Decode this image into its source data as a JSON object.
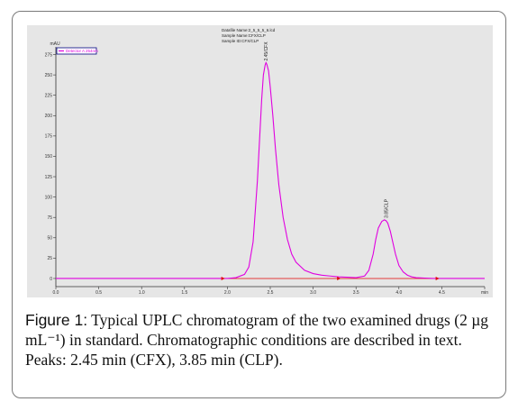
{
  "header": {
    "lines": [
      "Datafile Name:2_5_5_5_6.lcd",
      "Sample Name:CFX/CLP",
      "Sample ID:CFX/CLP"
    ]
  },
  "legend": {
    "label": "Detector A 254nm"
  },
  "colors": {
    "trace": "#e000e0",
    "baseline": "#e00000",
    "marker": "#e00000",
    "background": "#e6e6e6",
    "axis": "#333333"
  },
  "chart_data": {
    "type": "line",
    "title": "",
    "xlabel": "min",
    "ylabel": "mAU",
    "xlim": [
      0.0,
      5.0
    ],
    "ylim": [
      -10,
      280
    ],
    "x_ticks": [
      "0.0",
      "0.5",
      "1.0",
      "1.5",
      "2.0",
      "2.5",
      "3.0",
      "3.5",
      "4.0",
      "4.5",
      "min"
    ],
    "y_ticks": [
      "0",
      "25",
      "50",
      "75",
      "100",
      "125",
      "150",
      "175",
      "200",
      "225",
      "250",
      "275"
    ],
    "grid": false,
    "series": [
      {
        "name": "",
        "x": [
          1.95,
          2.0,
          2.1,
          2.2,
          2.25,
          2.3,
          2.35,
          2.38,
          2.4,
          2.42,
          2.44,
          2.45,
          2.46,
          2.48,
          2.5,
          2.53,
          2.56,
          2.6,
          2.65,
          2.7,
          2.75,
          2.8,
          2.9,
          3.0,
          3.1,
          3.2,
          3.3,
          3.4,
          3.5,
          3.6,
          3.65,
          3.7,
          3.73,
          3.76,
          3.8,
          3.83,
          3.85,
          3.87,
          3.9,
          3.93,
          3.96,
          4.0,
          4.05,
          4.1,
          4.15,
          4.2,
          4.3,
          4.4,
          4.5,
          4.6,
          4.7,
          5.0
        ],
        "y": [
          0,
          0,
          1,
          5,
          14,
          45,
          120,
          180,
          220,
          250,
          262,
          265,
          263,
          255,
          235,
          200,
          160,
          115,
          75,
          48,
          30,
          20,
          10,
          6,
          4,
          3,
          2,
          1.5,
          1,
          3,
          10,
          30,
          48,
          62,
          70,
          72,
          71,
          68,
          58,
          44,
          30,
          16,
          8,
          4,
          2,
          1,
          0.5,
          0,
          0,
          0,
          0,
          0
        ]
      }
    ],
    "peak_labels": [
      {
        "x": 2.45,
        "y": 265,
        "text": "2.45/CFX"
      },
      {
        "x": 3.85,
        "y": 72,
        "text": "3.85/CLP"
      }
    ]
  },
  "caption": {
    "figure_label": "Figure 1:",
    "text": " Typical UPLC chromatogram of the two examined drugs (2 µg mL⁻¹) in standard. Chromatographic conditions are described in text. Peaks: 2.45 min (CFX), 3.85 min (CLP)."
  }
}
